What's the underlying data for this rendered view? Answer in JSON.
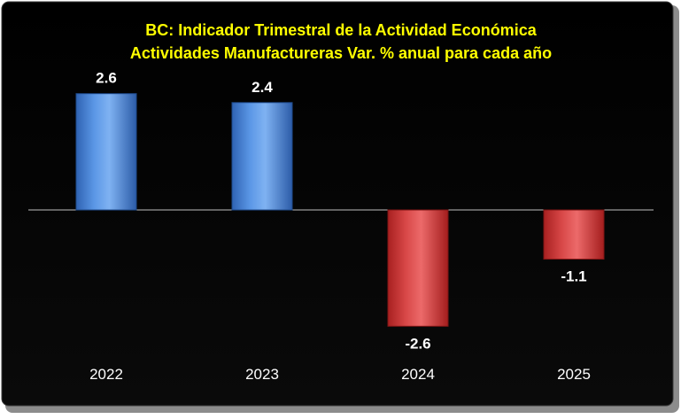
{
  "chart_data": {
    "type": "bar",
    "title": "BC: Indicador Trimestral de la Actividad Económica",
    "subtitle": "Actividades Manufactureras Var. % anual para cada año",
    "categories": [
      "2022",
      "2023",
      "2024",
      "2025"
    ],
    "values": [
      2.6,
      2.4,
      -2.6,
      -1.1
    ],
    "value_labels": [
      "2.6",
      "2.4",
      "-2.6",
      "-1.1"
    ],
    "xlabel": "",
    "ylabel": "",
    "ylim": [
      -3.0,
      3.0
    ],
    "grid": false,
    "legend": "none",
    "colors": {
      "positive": "#4a86d6",
      "negative": "#d23a3a",
      "title": "#ffff00",
      "background": "#000000",
      "labels": "#ffffff"
    }
  }
}
